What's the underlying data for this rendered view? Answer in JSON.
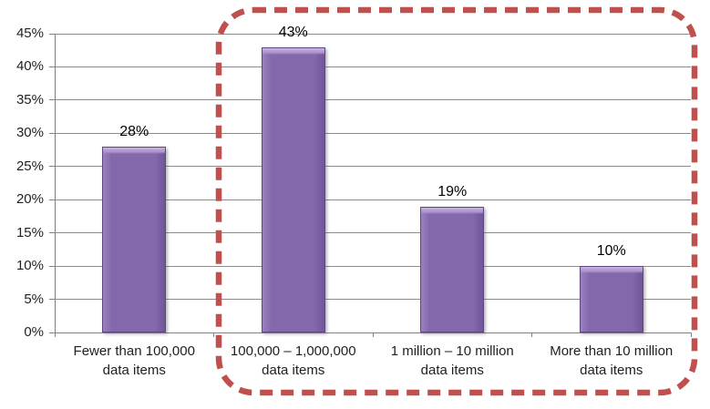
{
  "chart_data": {
    "type": "bar",
    "title": "",
    "xlabel": "",
    "ylabel": "",
    "categories": [
      "Fewer than 100,000\ndata items",
      "100,000 – 1,000,000\ndata items",
      "1 million – 10 million\ndata items",
      "More than 10 million\ndata items"
    ],
    "values": [
      28,
      43,
      19,
      10
    ],
    "bar_labels": [
      "28%",
      "43%",
      "19%",
      "10%"
    ],
    "ylim": [
      0,
      45
    ],
    "ytick_step": 5,
    "ytick_labels": [
      "0%",
      "5%",
      "10%",
      "15%",
      "20%",
      "25%",
      "30%",
      "35%",
      "40%",
      "45%"
    ],
    "grid": "horizontal",
    "legend": "none",
    "colors": {
      "bar_fill": "#8468AC",
      "bar_bevel_light": "#C8B4E0",
      "bar_border": "#5E4683",
      "gridline": "#8C8C8C",
      "axis": "#808080",
      "label_text": "#000000"
    }
  },
  "annotation": {
    "type": "dashed-rounded-rectangle",
    "color": "#C0504D",
    "highlighted_categories": [
      "100,000 – 1,000,000 data items",
      "1 million – 10 million data items",
      "More than 10 million data items"
    ]
  }
}
